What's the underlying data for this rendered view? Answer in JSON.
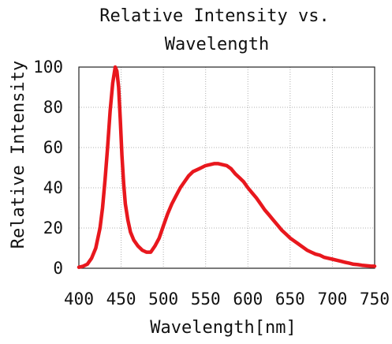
{
  "chart_data": {
    "type": "line",
    "title_lines": [
      "Relative Intensity vs.",
      "Wavelength"
    ],
    "xlabel": "Wavelength[nm]",
    "ylabel": "Relative Intensity",
    "xlim": [
      400,
      750
    ],
    "ylim": [
      0,
      100
    ],
    "x_ticks": [
      "400",
      "450",
      "500",
      "550",
      "600",
      "650",
      "700",
      "750"
    ],
    "y_ticks": [
      "0",
      "20",
      "40",
      "60",
      "80",
      "100"
    ],
    "grid": true,
    "legend": "none",
    "line_color": "#e8171d",
    "series": [
      {
        "x": [
          400,
          405,
          410,
          415,
          420,
          425,
          428,
          431,
          434,
          437,
          440,
          443,
          445,
          447,
          449,
          451,
          453,
          455,
          458,
          461,
          465,
          470,
          475,
          480,
          485,
          490,
          495,
          500,
          505,
          510,
          515,
          520,
          525,
          530,
          535,
          540,
          545,
          550,
          555,
          560,
          565,
          570,
          575,
          580,
          585,
          590,
          595,
          600,
          605,
          610,
          615,
          620,
          625,
          630,
          635,
          640,
          645,
          650,
          655,
          660,
          665,
          670,
          675,
          680,
          685,
          690,
          695,
          700,
          705,
          710,
          715,
          720,
          725,
          730,
          735,
          740,
          745,
          750
        ],
        "y": [
          0.5,
          1,
          2,
          5,
          10,
          20,
          30,
          44,
          60,
          78,
          92,
          100,
          98,
          90,
          74,
          56,
          42,
          32,
          24,
          18,
          14,
          11,
          9,
          8,
          8,
          11,
          15,
          21,
          27,
          32,
          36,
          40,
          43,
          46,
          48,
          49,
          50,
          51,
          51.5,
          52,
          52,
          51.5,
          51,
          49.5,
          47,
          45,
          43,
          40,
          37.5,
          35,
          32,
          29,
          26.5,
          24,
          21.5,
          19,
          17,
          15,
          13.5,
          12,
          10.5,
          9,
          8,
          7,
          6.5,
          5.5,
          5,
          4.5,
          4,
          3.5,
          3,
          2.5,
          2,
          1.8,
          1.5,
          1.3,
          1.1,
          1
        ]
      }
    ]
  }
}
